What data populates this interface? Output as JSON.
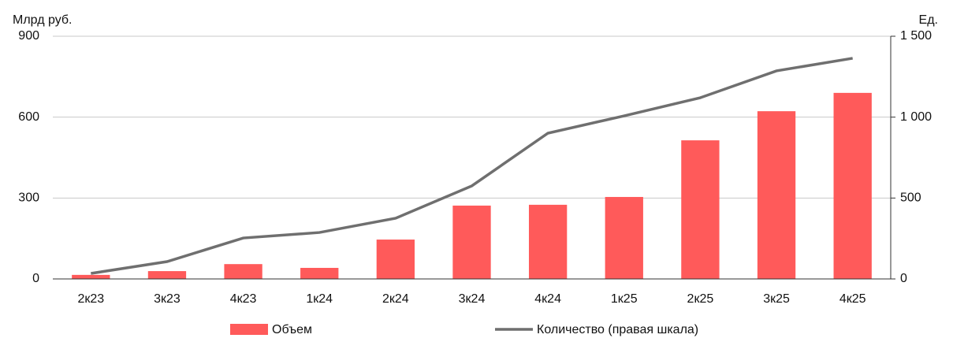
{
  "chart_data": {
    "type": "bar-line",
    "y_label": "Млрд руб.",
    "y2_label": "Ед.",
    "categories": [
      "2к23",
      "3к23",
      "4к23",
      "1к24",
      "2к24",
      "3к24",
      "4к24",
      "1к25",
      "2к25",
      "3к25",
      "4к25"
    ],
    "series": [
      {
        "name": "Объем",
        "type": "bar",
        "color": "#ff5a5a",
        "values": [
          15,
          29,
          55,
          41,
          146,
          272,
          275,
          304,
          514,
          622,
          690
        ]
      },
      {
        "name": "Количество (правая шкала)",
        "type": "line",
        "axis": "y2",
        "color": "#6f6f6f",
        "values": [
          34,
          107,
          253,
          287,
          375,
          575,
          901,
          1008,
          1120,
          1286,
          1364
        ]
      }
    ],
    "ylim": [
      0,
      900
    ],
    "yticks": [
      0,
      300,
      600,
      900
    ],
    "y2lim": [
      0,
      1500
    ],
    "y2ticks": [
      0,
      500,
      {
        "value": 1000,
        "label": "1 000"
      },
      {
        "value": 1500,
        "label": "1 500"
      }
    ],
    "grid": true,
    "legend": "bottom"
  }
}
